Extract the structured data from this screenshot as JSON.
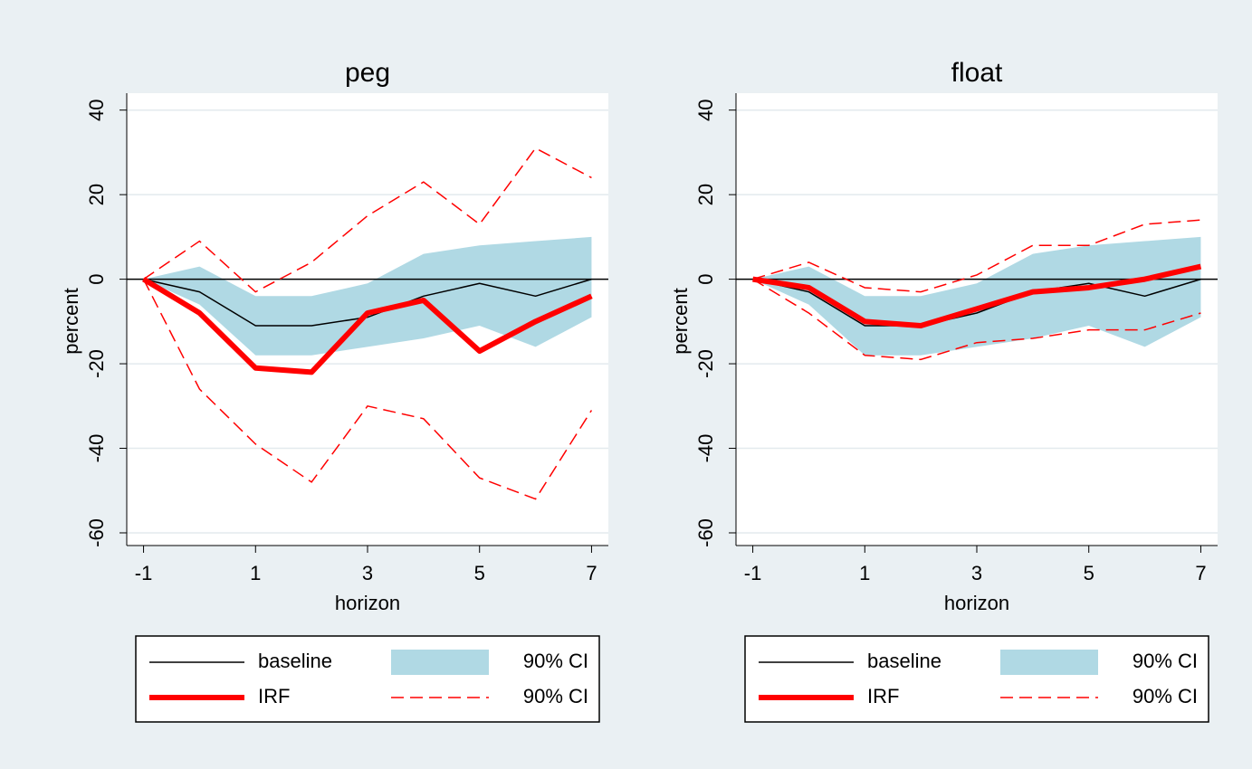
{
  "chart_data": [
    {
      "type": "line",
      "title": "peg",
      "x_label": "horizon",
      "y_label": "percent",
      "x": [
        -1,
        0,
        1,
        2,
        3,
        4,
        5,
        6,
        7
      ],
      "xlim": [
        -1.3,
        7.3
      ],
      "xticks": [
        -1,
        1,
        3,
        5,
        7
      ],
      "ylim": [
        -63,
        44
      ],
      "yticks": [
        -60,
        -40,
        -20,
        0,
        20,
        40
      ],
      "grid": true,
      "series": [
        {
          "name": "baseline",
          "style": "line",
          "color": "#000000",
          "values": [
            0,
            -3,
            -11,
            -11,
            -9,
            -4,
            -1,
            -4,
            0
          ]
        },
        {
          "name": "90% CI",
          "style": "band",
          "color": "#b0d9e4",
          "lower": [
            0,
            -6,
            -18,
            -18,
            -16,
            -14,
            -11,
            -16,
            -9
          ],
          "upper": [
            0,
            3,
            -4,
            -4,
            -1,
            6,
            8,
            9,
            10
          ]
        },
        {
          "name": "IRF",
          "style": "thick",
          "color": "#ff0000",
          "values": [
            0,
            -8,
            -21,
            -22,
            -8,
            -5,
            -17,
            -10,
            -4
          ]
        },
        {
          "name": "90% CI",
          "style": "dashed",
          "color": "#ff0000",
          "lower": [
            0,
            -26,
            -39,
            -48,
            -30,
            -33,
            -47,
            -52,
            -31
          ],
          "upper": [
            0,
            9,
            -3,
            4,
            15,
            23,
            13,
            31,
            24
          ]
        }
      ]
    },
    {
      "type": "line",
      "title": "float",
      "x_label": "horizon",
      "y_label": "percent",
      "x": [
        -1,
        0,
        1,
        2,
        3,
        4,
        5,
        6,
        7
      ],
      "xlim": [
        -1.3,
        7.3
      ],
      "xticks": [
        -1,
        1,
        3,
        5,
        7
      ],
      "ylim": [
        -63,
        44
      ],
      "yticks": [
        -60,
        -40,
        -20,
        0,
        20,
        40
      ],
      "grid": true,
      "series": [
        {
          "name": "baseline",
          "style": "line",
          "color": "#000000",
          "values": [
            0,
            -3,
            -11,
            -11,
            -8,
            -3,
            -1,
            -4,
            0
          ]
        },
        {
          "name": "90% CI",
          "style": "band",
          "color": "#b0d9e4",
          "lower": [
            0,
            -6,
            -18,
            -18,
            -16,
            -14,
            -11,
            -16,
            -9
          ],
          "upper": [
            0,
            3,
            -4,
            -4,
            -1,
            6,
            8,
            9,
            10
          ]
        },
        {
          "name": "IRF",
          "style": "thick",
          "color": "#ff0000",
          "values": [
            0,
            -2,
            -10,
            -11,
            -7,
            -3,
            -2,
            0,
            3
          ]
        },
        {
          "name": "90% CI",
          "style": "dashed",
          "color": "#ff0000",
          "lower": [
            0,
            -8,
            -18,
            -19,
            -15,
            -14,
            -12,
            -12,
            -8
          ],
          "upper": [
            0,
            4,
            -2,
            -3,
            1,
            8,
            8,
            13,
            14
          ]
        }
      ]
    }
  ]
}
